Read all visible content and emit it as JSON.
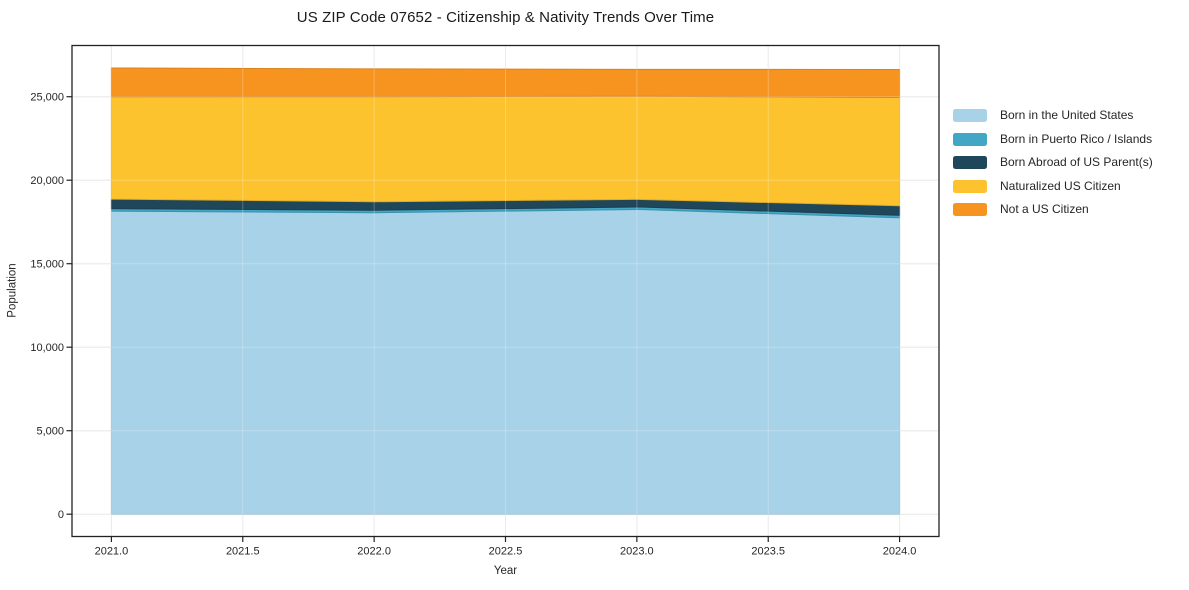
{
  "title": "US ZIP Code 07652 - Citizenship & Nativity Trends Over Time",
  "chart_data": {
    "type": "area",
    "stacked": true,
    "title": "US ZIP Code 07652 - Citizenship & Nativity Trends Over Time",
    "xlabel": "Year",
    "ylabel": "Population",
    "x": [
      2021,
      2022,
      2023,
      2024
    ],
    "series": [
      {
        "name": "Born in the United States",
        "color": "#a7d2e8",
        "values": [
          18150,
          18050,
          18250,
          17750
        ]
      },
      {
        "name": "Born in Puerto Rico / Islands",
        "color": "#41a7c5",
        "values": [
          150,
          150,
          150,
          150
        ]
      },
      {
        "name": "Born Abroad of US Parent(s)",
        "color": "#20465a",
        "values": [
          570,
          510,
          450,
          570
        ]
      },
      {
        "name": "Naturalized US Citizen",
        "color": "#fdc32f",
        "values": [
          6120,
          6290,
          6180,
          6480
        ]
      },
      {
        "name": "Not a US Citizen",
        "color": "#f7941f",
        "values": [
          1730,
          1670,
          1610,
          1680
        ]
      }
    ],
    "xlim": [
      2020.85,
      2024.15
    ],
    "ylim": [
      -1336,
      28067
    ],
    "xticks": {
      "values": [
        2021.0,
        2021.5,
        2022.0,
        2022.5,
        2023.0,
        2023.5,
        2024.0
      ],
      "labels": [
        "2021.0",
        "2021.5",
        "2022.0",
        "2022.5",
        "2023.0",
        "2023.5",
        "2024.0"
      ]
    },
    "yticks": {
      "values": [
        0,
        5000,
        10000,
        15000,
        20000,
        25000
      ],
      "labels": [
        "0",
        "5,000",
        "10,000",
        "15,000",
        "20,000",
        "25,000"
      ]
    },
    "grid": true,
    "legend_position": "right-outside"
  },
  "colors": {
    "background": "#ffffff",
    "grid": "#e4e4e4",
    "spine": "#222222",
    "text": "#262626"
  }
}
